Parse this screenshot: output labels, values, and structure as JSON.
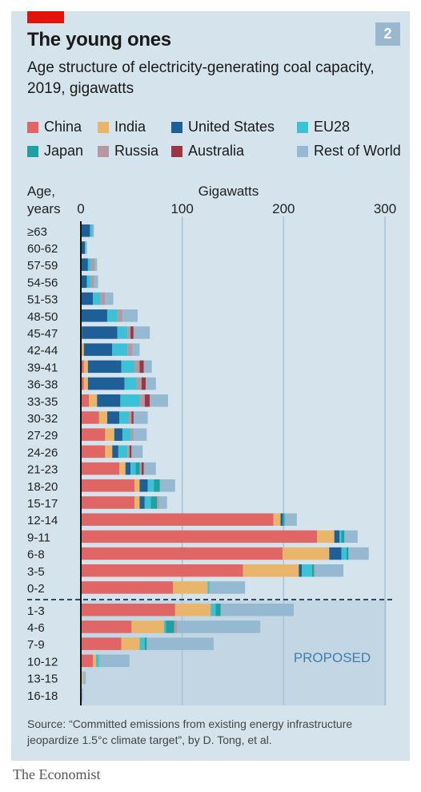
{
  "header": {
    "number_badge": "2",
    "title": "The young ones",
    "subtitle": "Age structure of electricity-generating coal capacity, 2019, gigawatts"
  },
  "legend": [
    {
      "label": "China",
      "color": "#e06666"
    },
    {
      "label": "India",
      "color": "#e8b56a"
    },
    {
      "label": "United States",
      "color": "#1d5f96"
    },
    {
      "label": "EU28",
      "color": "#3cc2d6"
    },
    {
      "label": "Japan",
      "color": "#20a0a0"
    },
    {
      "label": "Russia",
      "color": "#b39aa1"
    },
    {
      "label": "Australia",
      "color": "#9c3545"
    },
    {
      "label": "Rest of World",
      "color": "#94b9d1"
    }
  ],
  "footer": {
    "source": "Source: “Committed emissions from existing energy infrastructure jeopardize 1.5°c climate target”, by D. Tong, et al.",
    "brand": "The Economist"
  },
  "chart_data": {
    "type": "bar",
    "orientation": "horizontal",
    "stacked": true,
    "title": "The young ones",
    "subtitle": "Age structure of electricity-generating coal capacity, 2019, gigawatts",
    "ylabel": "Age, years",
    "xlabel": "Gigawatts",
    "xlim": [
      0,
      300
    ],
    "xticks": [
      0,
      100,
      200,
      300
    ],
    "grid": true,
    "legend_position": "top",
    "annotation": "PROPOSED",
    "series_names": [
      "China",
      "India",
      "United States",
      "EU28",
      "Japan",
      "Russia",
      "Australia",
      "Rest of World"
    ],
    "sections": [
      {
        "name": "existing",
        "categories": [
          "≥63",
          "60-62",
          "57-59",
          "54-56",
          "51-53",
          "48-50",
          "45-47",
          "42-44",
          "39-41",
          "36-38",
          "33-35",
          "30-32",
          "27-29",
          "24-26",
          "21-23",
          "18-20",
          "15-17",
          "12-14",
          "9-11",
          "6-8",
          "3-5",
          "0-2"
        ],
        "series": [
          {
            "name": "China",
            "values": [
              0,
              0,
              0,
              0,
              0,
              0,
              1,
              1,
              3,
              3,
              8,
              18,
              24,
              24,
              38,
              53,
              53,
              190,
              233,
              199,
              160,
              91
            ]
          },
          {
            "name": "India",
            "values": [
              0,
              0,
              0,
              0,
              0,
              0,
              0,
              2,
              4,
              4,
              8,
              8,
              9,
              7,
              6,
              5,
              5,
              7,
              17,
              46,
              55,
              34
            ]
          },
          {
            "name": "United States",
            "values": [
              9,
              4,
              7,
              6,
              12,
              26,
              35,
              28,
              33,
              36,
              23,
              12,
              8,
              6,
              5,
              8,
              5,
              2,
              5,
              12,
              3,
              0
            ]
          },
          {
            "name": "EU28",
            "values": [
              2,
              1,
              3,
              4,
              7,
              10,
              10,
              15,
              13,
              12,
              19,
              9,
              8,
              9,
              5,
              6,
              6,
              0,
              2,
              5,
              10,
              2
            ]
          },
          {
            "name": "Japan",
            "values": [
              0,
              0,
              0,
              0,
              0,
              0,
              0,
              0,
              0,
              0,
              0,
              0,
              0,
              0,
              4,
              6,
              6,
              2,
              3,
              2,
              2,
              0
            ]
          },
          {
            "name": "Russia",
            "values": [
              1,
              0,
              4,
              3,
              5,
              5,
              3,
              5,
              5,
              5,
              5,
              3,
              3,
              2,
              2,
              0,
              2,
              0,
              0,
              0,
              1,
              0
            ]
          },
          {
            "name": "Australia",
            "values": [
              0,
              0,
              0,
              0,
              0,
              0,
              3,
              0,
              4,
              4,
              5,
              2,
              0,
              2,
              2,
              0,
              0,
              0,
              0,
              0,
              0,
              0
            ]
          },
          {
            "name": "Rest of World",
            "values": [
              1,
              1,
              2,
              4,
              8,
              15,
              16,
              7,
              8,
              10,
              18,
              14,
              13,
              11,
              12,
              15,
              8,
              12,
              13,
              20,
              28,
              35
            ]
          }
        ]
      },
      {
        "name": "proposed",
        "categories": [
          "1-3",
          "4-6",
          "7-9",
          "10-12",
          "13-15",
          "16-18"
        ],
        "series": [
          {
            "name": "China",
            "values": [
              93,
              50,
              40,
              12,
              0,
              0
            ]
          },
          {
            "name": "India",
            "values": [
              35,
              32,
              18,
              3,
              2,
              1
            ]
          },
          {
            "name": "United States",
            "values": [
              0,
              0,
              0,
              0,
              0,
              0
            ]
          },
          {
            "name": "EU28",
            "values": [
              5,
              2,
              5,
              3,
              0,
              0
            ]
          },
          {
            "name": "Japan",
            "values": [
              5,
              8,
              2,
              0,
              0,
              0
            ]
          },
          {
            "name": "Russia",
            "values": [
              0,
              3,
              0,
              0,
              0,
              0
            ]
          },
          {
            "name": "Australia",
            "values": [
              0,
              0,
              0,
              0,
              0,
              0
            ]
          },
          {
            "name": "Rest of World",
            "values": [
              72,
              82,
              66,
              30,
              3,
              1
            ]
          }
        ]
      }
    ]
  }
}
